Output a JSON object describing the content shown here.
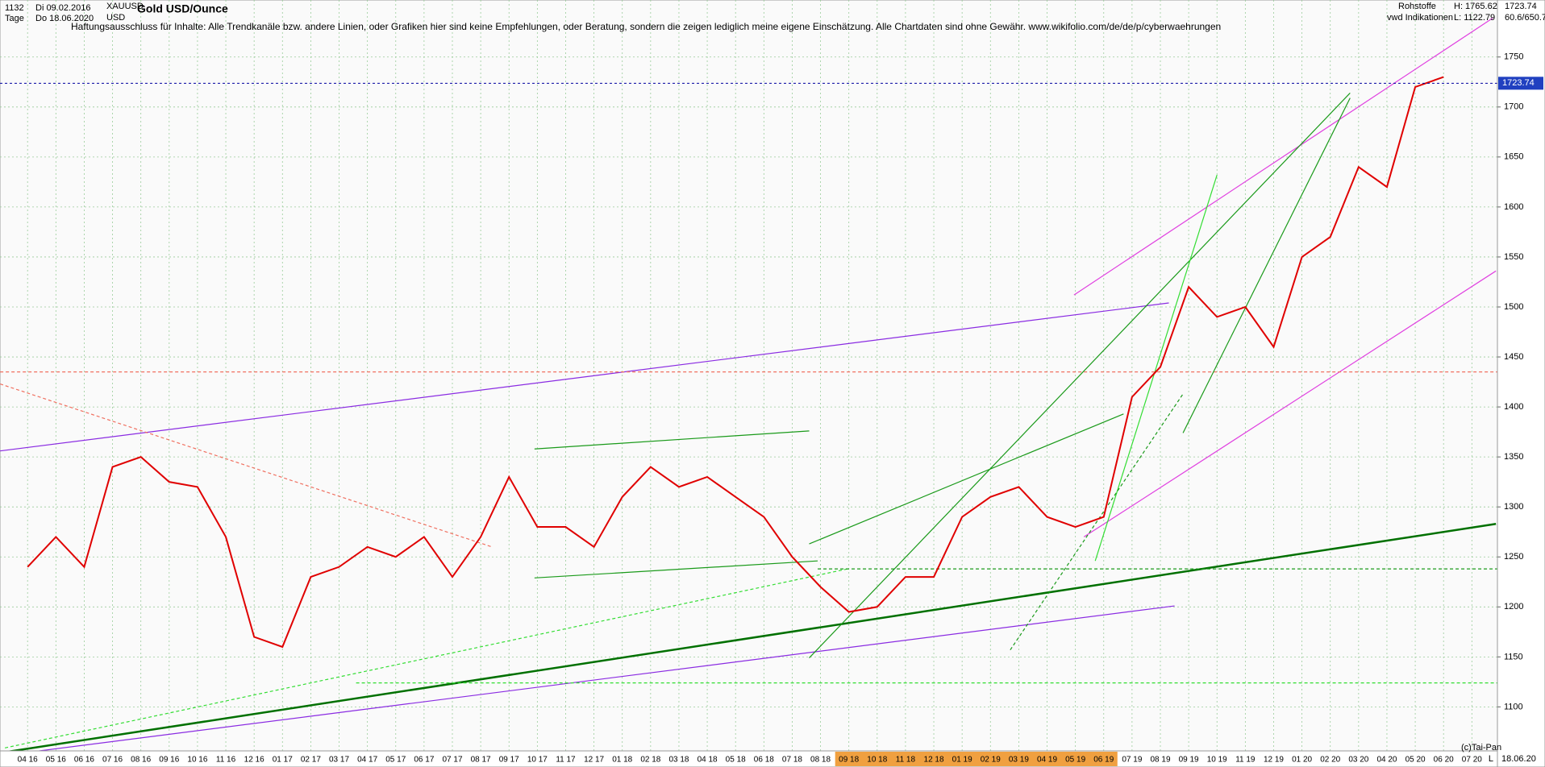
{
  "chart_data": {
    "type": "line",
    "title": "Gold USD/Ounce",
    "header": {
      "bars": "1132",
      "start": "Di 09.02.2016",
      "symbol": "XAUUSD",
      "period": "Tage",
      "end": "Do 18.06.2020",
      "currency": "USD",
      "group": "Rohstoffe",
      "source": "vwd Indikationen",
      "high": "H: 1765.62",
      "low": "L: 1122.79",
      "scale": "60.6/650.7"
    },
    "disclaimer": "Haftungsausschluss für Inhalte: Alle Trendkanäle bzw. andere Linien, oder Grafiken hier sind keine Empfehlungen, oder Beratung, sondern die zeigen lediglich meine eigene Einschätzung. Alle Chartdaten sind ohne Gewähr.  www.wikifolio.com/de/de/p/cyberwaehrungen",
    "footer": {
      "copyright": "(c)Tai-Pan",
      "mode": "L",
      "date": "18.06.20"
    },
    "last": 1723.74,
    "categories": [
      "04 16",
      "05 16",
      "06 16",
      "07 16",
      "08 16",
      "09 16",
      "10 16",
      "11 16",
      "12 16",
      "01 17",
      "02 17",
      "03 17",
      "04 17",
      "05 17",
      "06 17",
      "07 17",
      "08 17",
      "09 17",
      "10 17",
      "11 17",
      "12 17",
      "01 18",
      "02 18",
      "03 18",
      "04 18",
      "05 18",
      "06 18",
      "07 18",
      "08 18",
      "09 18",
      "10 18",
      "11 18",
      "12 18",
      "01 19",
      "02 19",
      "03 19",
      "04 19",
      "05 19",
      "06 19",
      "07 19",
      "08 19",
      "09 19",
      "10 19",
      "11 19",
      "12 19",
      "01 20",
      "02 20",
      "03 20",
      "04 20",
      "05 20",
      "06 20",
      "07 20"
    ],
    "highlight": {
      "from": "09 18",
      "to": "06 19"
    },
    "series": [
      {
        "name": "Gold USD/Ounce",
        "color": "#e00000",
        "values": [
          1240,
          1270,
          1240,
          1340,
          1350,
          1325,
          1320,
          1270,
          1170,
          1160,
          1230,
          1240,
          1260,
          1250,
          1270,
          1230,
          1270,
          1330,
          1280,
          1280,
          1260,
          1310,
          1340,
          1320,
          1330,
          1310,
          1290,
          1250,
          1220,
          1195,
          1200,
          1230,
          1230,
          1290,
          1310,
          1320,
          1290,
          1280,
          1290,
          1410,
          1440,
          1520,
          1490,
          1500,
          1460,
          1550,
          1570,
          1640,
          1620,
          1720,
          1730,
          null
        ]
      }
    ],
    "ylim": [
      1056,
      1807
    ],
    "yticks": [
      1100,
      1150,
      1200,
      1250,
      1300,
      1350,
      1400,
      1450,
      1500,
      1550,
      1600,
      1650,
      1700,
      1750
    ],
    "grid": true,
    "trendlines": [
      {
        "color": "#8a2be2",
        "from": [
          -0.97,
          1356
        ],
        "to": [
          40.3,
          1504
        ],
        "dash": false
      },
      {
        "color": "#8a2be2",
        "from": [
          -0.97,
          1051
        ],
        "to": [
          40.5,
          1201
        ],
        "dash": false
      },
      {
        "color": "#007000",
        "from": [
          -0.97,
          1054
        ],
        "to": [
          51.85,
          1283
        ],
        "dash": false
      },
      {
        "color": "#e040e0",
        "from": [
          36.95,
          1512
        ],
        "to": [
          51.74,
          1789
        ],
        "dash": false
      },
      {
        "color": "#e040e0",
        "from": [
          37.3,
          1270
        ],
        "to": [
          51.85,
          1536
        ],
        "dash": false
      },
      {
        "color": "#1a9a1a",
        "from": [
          27.6,
          1149
        ],
        "to": [
          46.7,
          1714
        ],
        "dash": false
      },
      {
        "color": "#1a9a1a",
        "from": [
          27.6,
          1263
        ],
        "to": [
          38.7,
          1393
        ],
        "dash": false
      },
      {
        "color": "#1a9a1a",
        "from": [
          17.9,
          1229
        ],
        "to": [
          27.9,
          1246
        ],
        "dash": false
      },
      {
        "color": "#1a9a1a",
        "from": [
          17.9,
          1358
        ],
        "to": [
          27.6,
          1376
        ],
        "dash": false
      },
      {
        "color": "#33dd33",
        "from": [
          37.7,
          1246
        ],
        "to": [
          42.0,
          1632
        ],
        "dash": false
      },
      {
        "color": "#33dd33",
        "from": [
          -0.8,
          1059
        ],
        "to": [
          28.95,
          1238
        ],
        "dash": true
      },
      {
        "color": "#f07060",
        "from": [
          -0.97,
          1423
        ],
        "to": [
          16.4,
          1260
        ],
        "dash": true
      },
      {
        "color": "#33dd33",
        "from": [
          11.6,
          1124
        ],
        "to": [
          51.9,
          1124
        ],
        "dash": true
      },
      {
        "color": "#f07060",
        "from": [
          -0.97,
          1435
        ],
        "to": [
          51.9,
          1435
        ],
        "dash": true
      },
      {
        "color": "#1a9a1a",
        "from": [
          27.9,
          1238
        ],
        "to": [
          51.9,
          1238
        ],
        "dash": true
      },
      {
        "color": "#1a9a1a",
        "from": [
          34.7,
          1157
        ],
        "to": [
          40.8,
          1413
        ],
        "dash": true
      },
      {
        "color": "#1a9a1a",
        "from": [
          40.8,
          1374
        ],
        "to": [
          46.7,
          1709
        ],
        "dash": false
      }
    ]
  }
}
